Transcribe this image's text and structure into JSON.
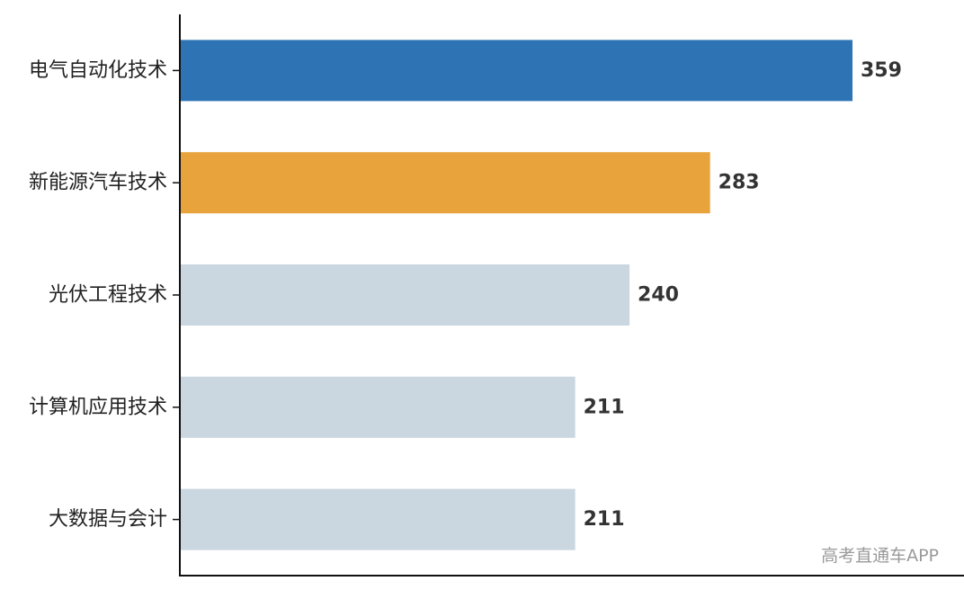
{
  "chart_data": {
    "type": "bar",
    "orientation": "horizontal",
    "title": "",
    "xlabel": "",
    "ylabel": "",
    "categories": [
      "电气自动化技术",
      "新能源汽车技术",
      "光伏工程技术",
      "计算机应用技术",
      "大数据与会计"
    ],
    "values": [
      359,
      283,
      240,
      211,
      211
    ],
    "value_labels": [
      "359",
      "283",
      "240",
      "211",
      "211"
    ],
    "bar_colors": [
      "#2e74b5",
      "#e8a33d",
      "#cad6e0",
      "#cad6e0",
      "#cad6e0"
    ],
    "xlim": [
      0,
      385
    ],
    "grid": false,
    "legend": "none"
  },
  "watermark": "高考直通车APP"
}
